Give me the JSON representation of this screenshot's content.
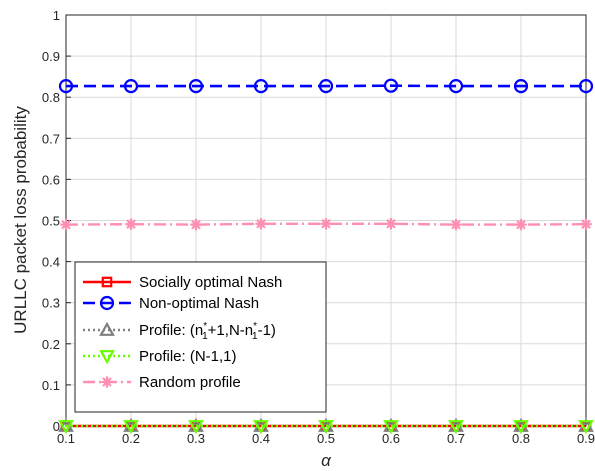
{
  "chart_data": {
    "type": "line",
    "xlabel": "α",
    "ylabel": "URLLC packet loss probability",
    "xlim": [
      0.1,
      0.9
    ],
    "ylim": [
      0,
      1
    ],
    "x": [
      0.1,
      0.2,
      0.3,
      0.4,
      0.5,
      0.6,
      0.7,
      0.8,
      0.9
    ],
    "x_ticks": [
      "0.1",
      "0.2",
      "0.3",
      "0.4",
      "0.5",
      "0.6",
      "0.7",
      "0.8",
      "0.9"
    ],
    "y_ticks": [
      "0",
      "0.1",
      "0.2",
      "0.3",
      "0.4",
      "0.5",
      "0.6",
      "0.7",
      "0.8",
      "0.9",
      "1"
    ],
    "grid": true,
    "legend_position": "bottom-left",
    "series": [
      {
        "name": "Socially optimal Nash",
        "values": [
          0,
          0,
          0,
          0,
          0,
          0,
          0,
          0,
          0
        ],
        "color": "#ff0000",
        "marker": "square",
        "dash": "solid"
      },
      {
        "name": "Non-optimal Nash",
        "values": [
          0.827,
          0.827,
          0.827,
          0.827,
          0.827,
          0.828,
          0.827,
          0.827,
          0.827
        ],
        "color": "#0000ff",
        "marker": "circle",
        "dash": "dash"
      },
      {
        "name": "Profile: (n1*+1,N-n1*-1)",
        "values": [
          0,
          0,
          0,
          0,
          0,
          0,
          0,
          0,
          0
        ],
        "color": "#808080",
        "marker": "triangle-up",
        "dash": "dot"
      },
      {
        "name": "Profile: (N-1,1)",
        "values": [
          0,
          0,
          0,
          0,
          0,
          0,
          0,
          0,
          0
        ],
        "color": "#66ff00",
        "marker": "triangle-down",
        "dash": "dot"
      },
      {
        "name": "Random profile",
        "values": [
          0.49,
          0.491,
          0.49,
          0.492,
          0.492,
          0.492,
          0.49,
          0.49,
          0.491
        ],
        "color": "#ff8fb0",
        "marker": "asterisk",
        "dash": "dashdot"
      }
    ]
  }
}
